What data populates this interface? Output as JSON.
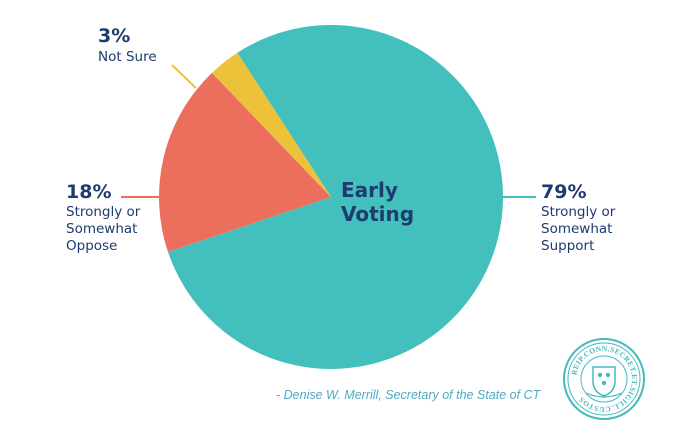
{
  "chart_data": {
    "type": "pie",
    "center_label": [
      "Early",
      "Voting"
    ],
    "slices": [
      {
        "label": "Strongly or Somewhat Support",
        "lines": [
          "Strongly or",
          "Somewhat",
          "Support"
        ],
        "value": 79,
        "display": "79%",
        "color": "#43bfbd"
      },
      {
        "label": "Strongly or Somewhat Oppose",
        "lines": [
          "Strongly or",
          "Somewhat",
          "Oppose"
        ],
        "value": 18,
        "display": "18%",
        "color": "#ec6f5e"
      },
      {
        "label": "Not Sure",
        "lines": [
          "Not Sure"
        ],
        "value": 3,
        "display": "3%",
        "color": "#ecc23a"
      }
    ]
  },
  "attribution": "- Denise W. Merrill, Secretary of the State of CT",
  "seal": {
    "text": "REIP.CONN.SECRET.ET.SIGILL.CUSTOS",
    "color": "#46b8bc"
  },
  "colors": {
    "text": "#1d3b6e",
    "quote": "#4fa9c5"
  }
}
